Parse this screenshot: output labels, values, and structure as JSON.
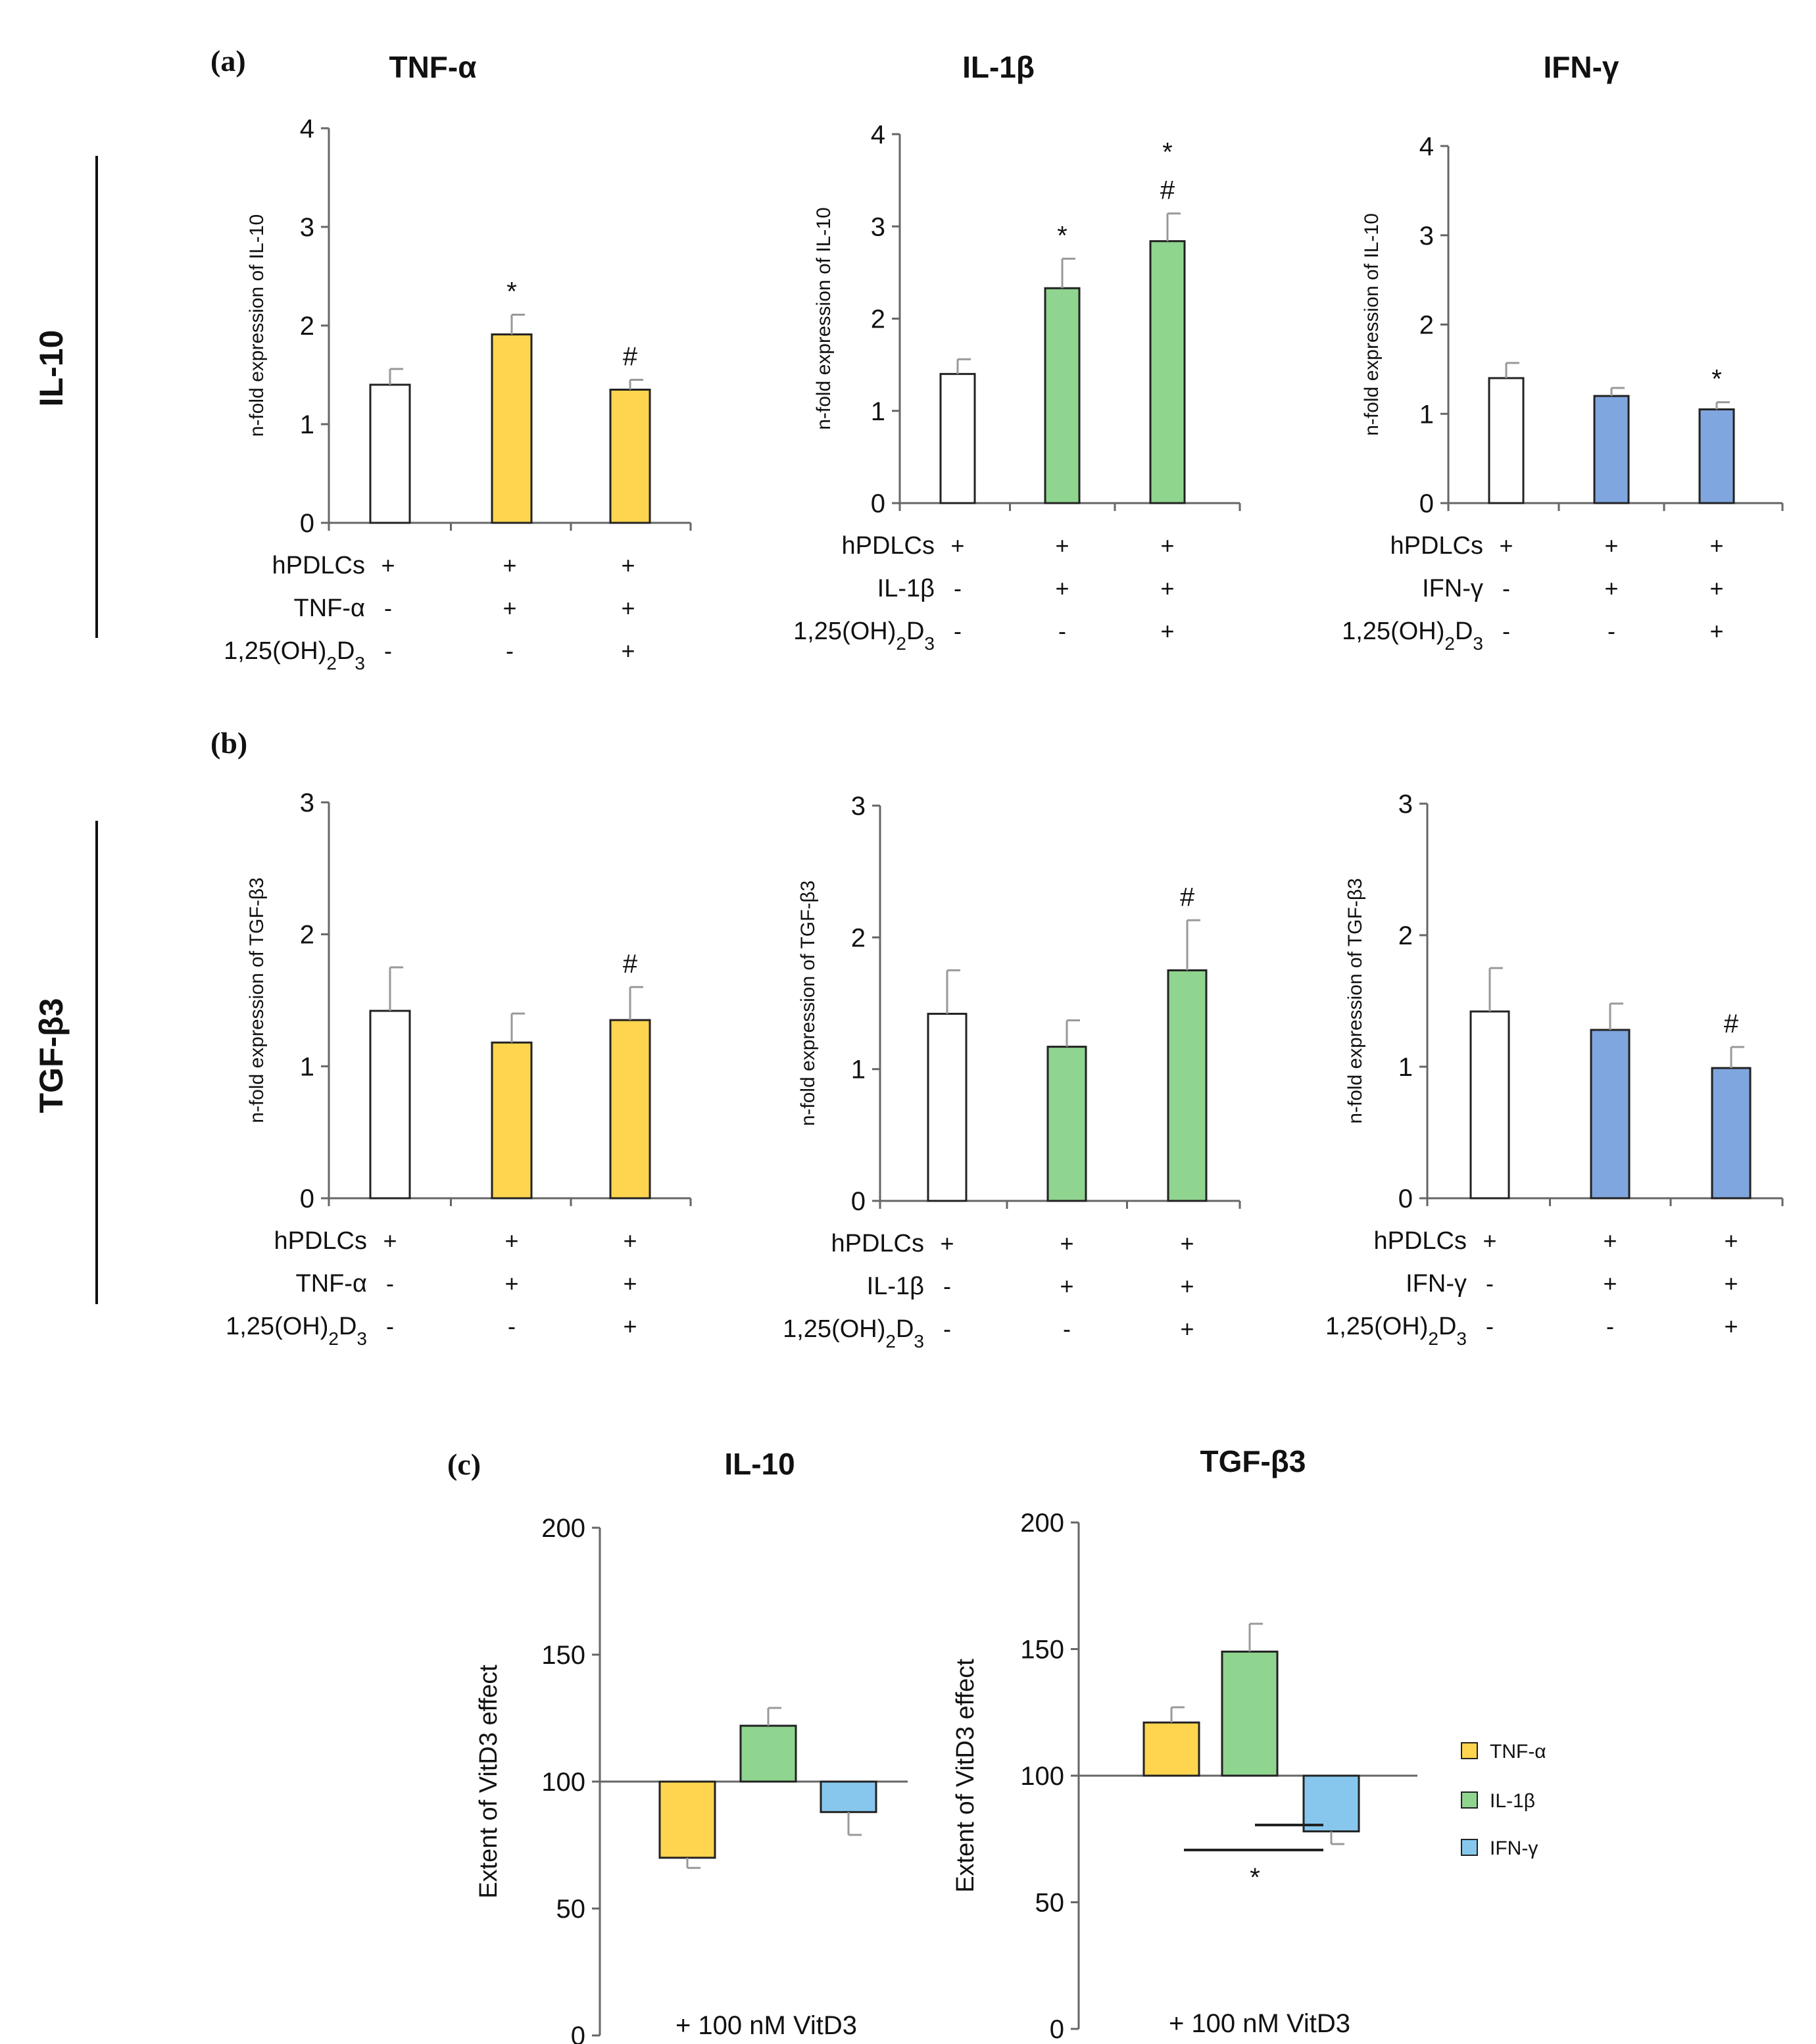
{
  "panels": {
    "a": "(a)",
    "b": "(b)",
    "c": "(c)"
  },
  "row_labels": {
    "row_a": "IL-10",
    "row_b": "TGF-β3"
  },
  "condition_labels": {
    "cells": "hPDLCs",
    "vitd_base": "1,25(OH)",
    "vitd_sub1": "2",
    "vitd_mid": "D",
    "vitd_sub2": "3"
  },
  "colors": {
    "control": "#ffffff",
    "tnf": "#FFD54F",
    "il1b": "#8FD48F",
    "ifng_ab": "#7FA6DE",
    "ifng_c": "#87C7EE",
    "bar_stroke": "#222222",
    "error": "#999999"
  },
  "legend": {
    "items": [
      "TNF-α",
      "IL-1β",
      "IFN-γ"
    ]
  },
  "chart_data": [
    {
      "type": "bar",
      "title": "TNF-α",
      "row": "a",
      "ylabel": "n-fold expression of IL-10",
      "ylim": [
        0,
        4
      ],
      "yticks": [
        "0",
        "1",
        "2",
        "3",
        "4"
      ],
      "categories": [
        "control",
        "cytokine",
        "cytokine + VitD3"
      ],
      "values": [
        1.4,
        1.91,
        1.35
      ],
      "errors": [
        0.16,
        0.2,
        0.1
      ],
      "significance": [
        [],
        [
          "*"
        ],
        [
          "#"
        ]
      ],
      "conditions": [
        {
          "label": "hPDLCs",
          "marks": [
            "+",
            "+",
            "+"
          ]
        },
        {
          "label": "TNF-α",
          "marks": [
            "-",
            "+",
            "+"
          ]
        },
        {
          "label": "1,25(OH)2D3",
          "marks": [
            "-",
            "-",
            "+"
          ]
        }
      ]
    },
    {
      "type": "bar",
      "title": "IL-1β",
      "row": "a",
      "ylabel": "n-fold expression of IL-10",
      "ylim": [
        0,
        4
      ],
      "yticks": [
        "0",
        "1",
        "2",
        "3",
        "4"
      ],
      "categories": [
        "control",
        "cytokine",
        "cytokine + VitD3"
      ],
      "values": [
        1.4,
        2.33,
        2.84
      ],
      "errors": [
        0.16,
        0.32,
        0.3
      ],
      "significance": [
        [],
        [
          "*"
        ],
        [
          "#",
          "*"
        ]
      ],
      "conditions": [
        {
          "label": "hPDLCs",
          "marks": [
            "+",
            "+",
            "+"
          ]
        },
        {
          "label": "IL-1β",
          "marks": [
            "-",
            "+",
            "+"
          ]
        },
        {
          "label": "1,25(OH)2D3",
          "marks": [
            "-",
            "-",
            "+"
          ]
        }
      ]
    },
    {
      "type": "bar",
      "title": "IFN-γ",
      "row": "a",
      "ylabel": "n-fold expression of IL-10",
      "ylim": [
        0,
        4
      ],
      "yticks": [
        "0",
        "1",
        "2",
        "3",
        "4"
      ],
      "categories": [
        "control",
        "cytokine",
        "cytokine + VitD3"
      ],
      "values": [
        1.4,
        1.2,
        1.05
      ],
      "errors": [
        0.17,
        0.09,
        0.08
      ],
      "significance": [
        [],
        [],
        [
          "*"
        ]
      ],
      "conditions": [
        {
          "label": "hPDLCs",
          "marks": [
            "+",
            "+",
            "+"
          ]
        },
        {
          "label": "IFN-γ",
          "marks": [
            "-",
            "+",
            "+"
          ]
        },
        {
          "label": "1,25(OH)2D3",
          "marks": [
            "-",
            "-",
            "+"
          ]
        }
      ]
    },
    {
      "type": "bar",
      "title": "",
      "row": "b",
      "ylabel": "n-fold expression of TGF-β3",
      "ylim": [
        0,
        3
      ],
      "yticks": [
        "0",
        "1",
        "2",
        "3"
      ],
      "categories": [
        "control",
        "cytokine",
        "cytokine + VitD3"
      ],
      "values": [
        1.42,
        1.18,
        1.35
      ],
      "errors": [
        0.33,
        0.22,
        0.25
      ],
      "significance": [
        [],
        [],
        [
          "#"
        ]
      ],
      "conditions": [
        {
          "label": "hPDLCs",
          "marks": [
            "+",
            "+",
            "+"
          ]
        },
        {
          "label": "TNF-α",
          "marks": [
            "-",
            "+",
            "+"
          ]
        },
        {
          "label": "1,25(OH)2D3",
          "marks": [
            "-",
            "-",
            "+"
          ]
        }
      ]
    },
    {
      "type": "bar",
      "title": "",
      "row": "b",
      "ylabel": "n-fold expression of TGF-β3",
      "ylim": [
        0,
        3
      ],
      "yticks": [
        "0",
        "1",
        "2",
        "3"
      ],
      "categories": [
        "control",
        "cytokine",
        "cytokine + VitD3"
      ],
      "values": [
        1.42,
        1.17,
        1.75
      ],
      "errors": [
        0.33,
        0.2,
        0.38
      ],
      "significance": [
        [],
        [],
        [
          "#"
        ]
      ],
      "conditions": [
        {
          "label": "hPDLCs",
          "marks": [
            "+",
            "+",
            "+"
          ]
        },
        {
          "label": "IL-1β",
          "marks": [
            "-",
            "+",
            "+"
          ]
        },
        {
          "label": "1,25(OH)2D3",
          "marks": [
            "-",
            "-",
            "+"
          ]
        }
      ]
    },
    {
      "type": "bar",
      "title": "",
      "row": "b",
      "ylabel": "n-fold expression of TGF-β3",
      "ylim": [
        0,
        3
      ],
      "yticks": [
        "0",
        "1",
        "2",
        "3"
      ],
      "categories": [
        "control",
        "cytokine",
        "cytokine + VitD3"
      ],
      "values": [
        1.42,
        1.28,
        0.99
      ],
      "errors": [
        0.33,
        0.2,
        0.16
      ],
      "significance": [
        [],
        [],
        [
          "#"
        ]
      ],
      "conditions": [
        {
          "label": "hPDLCs",
          "marks": [
            "+",
            "+",
            "+"
          ]
        },
        {
          "label": "IFN-γ",
          "marks": [
            "-",
            "+",
            "+"
          ]
        },
        {
          "label": "1,25(OH)2D3",
          "marks": [
            "-",
            "-",
            "+"
          ]
        }
      ]
    },
    {
      "type": "bar",
      "title": "IL-10",
      "row": "c",
      "ylabel": "Extent of VitD3 effect",
      "ylim": [
        0,
        200
      ],
      "yticks": [
        "0",
        "50",
        "100",
        "150",
        "200"
      ],
      "baseline": 100,
      "xlabel": "+ 100 nM VitD3",
      "categories": [
        "TNF-α",
        "IL-1β",
        "IFN-γ"
      ],
      "values": [
        70,
        122,
        88
      ],
      "errors": [
        4,
        7,
        9
      ],
      "error_direction": [
        "down",
        "up",
        "down"
      ]
    },
    {
      "type": "bar",
      "title": "TGF-β3",
      "row": "c",
      "ylabel": "Extent of VitD3 effect",
      "ylim": [
        0,
        200
      ],
      "yticks": [
        "0",
        "50",
        "100",
        "150",
        "200"
      ],
      "baseline": 100,
      "xlabel": "+ 100 nM VitD3",
      "categories": [
        "TNF-α",
        "IL-1β",
        "IFN-γ"
      ],
      "values": [
        121,
        149,
        78
      ],
      "errors": [
        6,
        11,
        5
      ],
      "error_direction": [
        "up",
        "up",
        "down"
      ],
      "significance_brackets": [
        {
          "from": 0,
          "to": 2
        },
        {
          "from": 1,
          "to": 2
        }
      ],
      "bracket_label": "*"
    }
  ]
}
